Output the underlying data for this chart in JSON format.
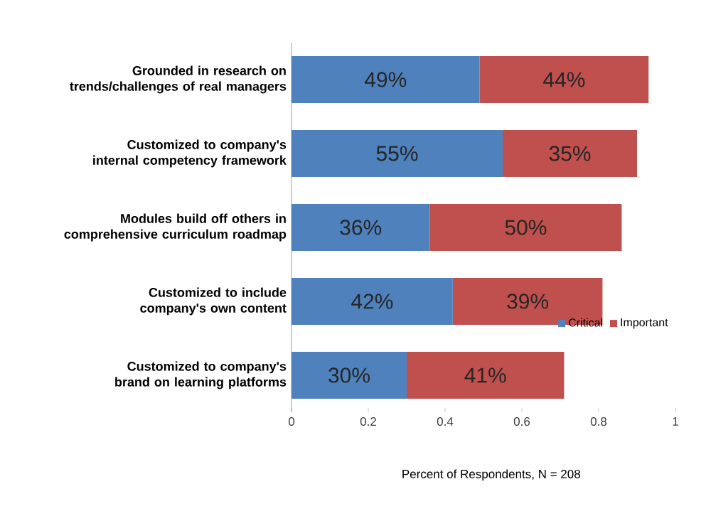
{
  "chart_data": {
    "type": "bar",
    "orientation": "horizontal",
    "stacked": true,
    "categories": [
      "Grounded in research on trends/challenges of real managers",
      "Customized to company's internal competency framework",
      "Modules build off others in comprehensive curriculum roadmap",
      "Customized to include company's own content",
      "Customized to company's brand on learning platforms"
    ],
    "series": [
      {
        "name": "Critical",
        "color": "#4f81bd",
        "values": [
          0.49,
          0.55,
          0.36,
          0.42,
          0.3
        ],
        "value_labels": [
          "49%",
          "55%",
          "36%",
          "42%",
          "30%"
        ]
      },
      {
        "name": "Important",
        "color": "#c0504d",
        "values": [
          0.44,
          0.35,
          0.5,
          0.39,
          0.41
        ],
        "value_labels": [
          "44%",
          "35%",
          "50%",
          "39%",
          "41%"
        ]
      }
    ],
    "xlim": [
      0,
      1
    ],
    "xticks": [
      0,
      0.2,
      0.4,
      0.6,
      0.8,
      1
    ],
    "xlabel": "Percent of Respondents, N = 208",
    "legend": "bottom right"
  }
}
